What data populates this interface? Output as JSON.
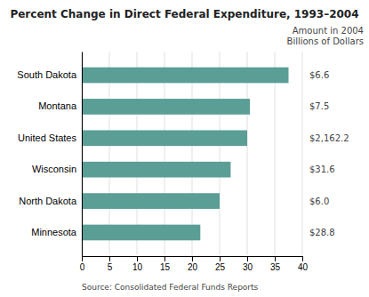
{
  "chart_data": {
    "type": "bar",
    "orientation": "horizontal",
    "title": "Percent Change in Direct Federal Expenditure, 1993–2004",
    "categories": [
      "South Dakota",
      "Montana",
      "United States",
      "Wisconsin",
      "North Dakota",
      "Minnesota"
    ],
    "values": [
      37.5,
      30.5,
      30.0,
      27.0,
      25.0,
      21.5
    ],
    "color": "#5a9e96",
    "xlim": [
      0,
      40
    ],
    "xticks": [
      0,
      5,
      10,
      15,
      20,
      25,
      30,
      35,
      40
    ],
    "grid": true,
    "amounts": [
      "$6.6",
      "$7.5",
      "$2,162.2",
      "$31.6",
      "$6.0",
      "$28.8"
    ],
    "amounts_title": [
      "Amount in 2004",
      "Billions of Dollars"
    ],
    "source": "Source: Consolidated Federal Funds Reports"
  }
}
